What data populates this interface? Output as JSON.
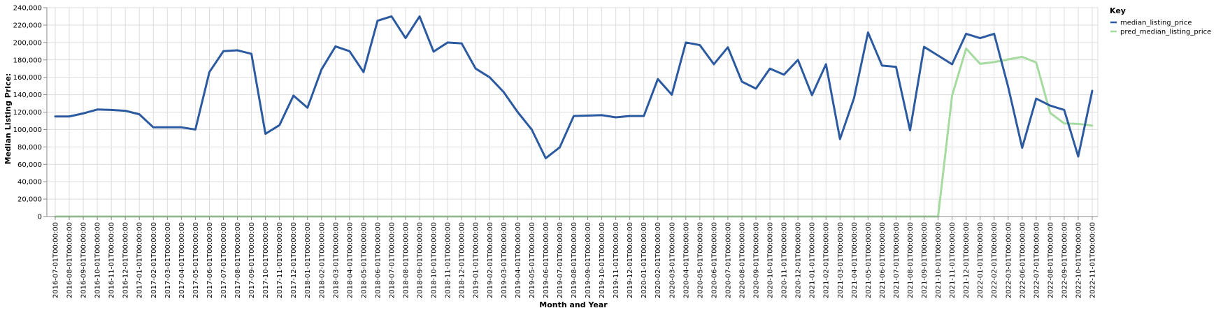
{
  "chart_data": {
    "type": "line",
    "title": "",
    "xlabel": "Month and Year",
    "ylabel": "Median Listing Price:",
    "ylim": [
      0,
      240000
    ],
    "yticks": [
      0,
      20000,
      40000,
      60000,
      80000,
      100000,
      120000,
      140000,
      160000,
      180000,
      200000,
      220000,
      240000
    ],
    "ytick_labels": [
      "0",
      "20,000",
      "40,000",
      "60,000",
      "80,000",
      "100,000",
      "120,000",
      "140,000",
      "160,000",
      "180,000",
      "200,000",
      "220,000",
      "240,000"
    ],
    "grid": true,
    "legend": {
      "title": "Key",
      "position": "top-right"
    },
    "categories": [
      "2016-07-01T00:00:00",
      "2016-08-01T00:00:00",
      "2016-09-01T00:00:00",
      "2016-10-01T00:00:00",
      "2016-11-01T00:00:00",
      "2016-12-01T00:00:00",
      "2017-01-01T00:00:00",
      "2017-02-01T00:00:00",
      "2017-03-01T00:00:00",
      "2017-04-01T00:00:00",
      "2017-05-01T00:00:00",
      "2017-06-01T00:00:00",
      "2017-07-01T00:00:00",
      "2017-08-01T00:00:00",
      "2017-09-01T00:00:00",
      "2017-10-01T00:00:00",
      "2017-11-01T00:00:00",
      "2017-12-01T00:00:00",
      "2018-01-01T00:00:00",
      "2018-02-01T00:00:00",
      "2018-03-01T00:00:00",
      "2018-04-01T00:00:00",
      "2018-05-01T00:00:00",
      "2018-06-01T00:00:00",
      "2018-07-01T00:00:00",
      "2018-08-01T00:00:00",
      "2018-09-01T00:00:00",
      "2018-10-01T00:00:00",
      "2018-11-01T00:00:00",
      "2018-12-01T00:00:00",
      "2019-01-01T00:00:00",
      "2019-02-01T00:00:00",
      "2019-03-01T00:00:00",
      "2019-04-01T00:00:00",
      "2019-05-01T00:00:00",
      "2019-06-01T00:00:00",
      "2019-07-01T00:00:00",
      "2019-08-01T00:00:00",
      "2019-09-01T00:00:00",
      "2019-10-01T00:00:00",
      "2019-11-01T00:00:00",
      "2019-12-01T00:00:00",
      "2020-01-01T00:00:00",
      "2020-02-01T00:00:00",
      "2020-03-01T00:00:00",
      "2020-04-01T00:00:00",
      "2020-05-01T00:00:00",
      "2020-06-01T00:00:00",
      "2020-07-01T00:00:00",
      "2020-08-01T00:00:00",
      "2020-09-01T00:00:00",
      "2020-10-01T00:00:00",
      "2020-11-01T00:00:00",
      "2020-12-01T00:00:00",
      "2021-01-01T00:00:00",
      "2021-02-01T00:00:00",
      "2021-03-01T00:00:00",
      "2021-04-01T00:00:00",
      "2021-05-01T00:00:00",
      "2021-06-01T00:00:00",
      "2021-07-01T00:00:00",
      "2021-08-01T00:00:00",
      "2021-09-01T00:00:00",
      "2021-10-01T00:00:00",
      "2021-11-01T00:00:00",
      "2021-12-01T00:00:00",
      "2022-01-01T00:00:00",
      "2022-02-01T00:00:00",
      "2022-03-01T00:00:00",
      "2022-06-01T00:00:00",
      "2022-07-01T00:00:00",
      "2022-08-01T00:00:00",
      "2022-09-01T00:00:00",
      "2022-10-01T00:00:00",
      "2022-11-01T00:00:00"
    ],
    "series": [
      {
        "name": "median_listing_price",
        "color": "#2c5aa0",
        "values": [
          115000,
          115000,
          118500,
          123000,
          122500,
          121500,
          117500,
          102500,
          102500,
          102500,
          100000,
          166000,
          190000,
          191000,
          187000,
          95000,
          105000,
          139000,
          125000,
          169000,
          195500,
          190000,
          166000,
          225000,
          230000,
          205000,
          230000,
          189500,
          200000,
          199000,
          170000,
          160000,
          143000,
          120000,
          100000,
          67000,
          79500,
          115500,
          116000,
          116500,
          114000,
          115500,
          115500,
          158000,
          140000,
          200000,
          197000,
          175000,
          194500,
          155000,
          147000,
          170000,
          163000,
          180000,
          139500,
          175000,
          89000,
          136000,
          211500,
          173500,
          172000,
          99000,
          195000,
          185000,
          175000,
          210000,
          205000,
          210000,
          149000,
          79000,
          135500,
          127500,
          122500,
          69000,
          144500
        ]
      },
      {
        "name": "pred_median_listing_price",
        "color": "#a6dba0",
        "values": [
          0,
          0,
          0,
          0,
          0,
          0,
          0,
          0,
          0,
          0,
          0,
          0,
          0,
          0,
          0,
          0,
          0,
          0,
          0,
          0,
          0,
          0,
          0,
          0,
          0,
          0,
          0,
          0,
          0,
          0,
          0,
          0,
          0,
          0,
          0,
          0,
          0,
          0,
          0,
          0,
          0,
          0,
          0,
          0,
          0,
          0,
          0,
          0,
          0,
          0,
          0,
          0,
          0,
          0,
          0,
          0,
          0,
          0,
          0,
          0,
          0,
          0,
          0,
          0,
          139000,
          193000,
          175500,
          177500,
          180500,
          183500,
          177000,
          119000,
          107000,
          106500,
          104500
        ]
      }
    ]
  }
}
